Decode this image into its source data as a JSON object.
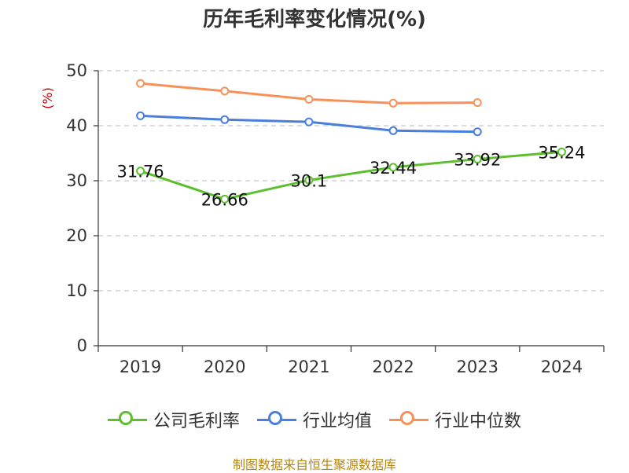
{
  "chart_data": {
    "type": "line",
    "title": "历年毛利率变化情况(%)",
    "ylabel": "(%)",
    "xlabel": "",
    "categories": [
      "2019",
      "2020",
      "2021",
      "2022",
      "2023",
      "2024"
    ],
    "ylim": [
      0,
      50
    ],
    "yticks": [
      0,
      10,
      20,
      30,
      40,
      50
    ],
    "grid": true,
    "legend_position": "bottom",
    "series": [
      {
        "name": "公司毛利率",
        "color": "#5dbf2f",
        "values": [
          31.76,
          26.66,
          30.1,
          32.44,
          33.92,
          35.24
        ],
        "labels": [
          "31.76",
          "26.66",
          "30.1",
          "32.44",
          "33.92",
          "35.24"
        ]
      },
      {
        "name": "行业均值",
        "color": "#4a7fdc",
        "values": [
          41.8,
          41.1,
          40.7,
          39.1,
          38.9,
          null
        ]
      },
      {
        "name": "行业中位数",
        "color": "#f79159",
        "values": [
          47.7,
          46.3,
          44.8,
          44.1,
          44.2,
          null
        ]
      }
    ]
  },
  "source": "制图数据来自恒生聚源数据库"
}
